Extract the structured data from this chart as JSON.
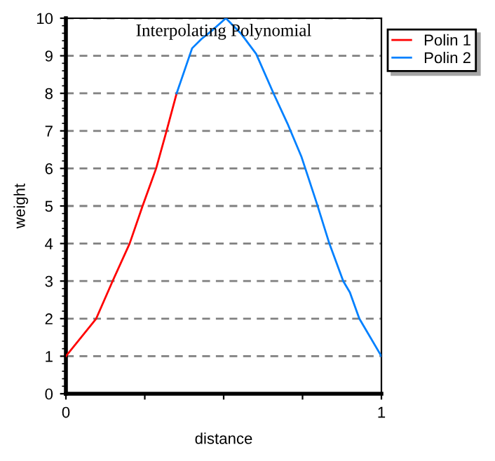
{
  "chart_data": {
    "type": "line",
    "title": "Interpolating Polynomial",
    "xlabel": "distance",
    "ylabel": "weight",
    "xlim": [
      0,
      1
    ],
    "ylim": [
      0,
      10
    ],
    "xticks": [
      0,
      {
        "value": 0.25,
        "label": null
      },
      {
        "value": 0.5,
        "label": null
      },
      {
        "value": 0.75,
        "label": null
      },
      1
    ],
    "yticks": [
      0,
      1,
      2,
      3,
      4,
      5,
      6,
      7,
      8,
      9,
      10
    ],
    "grid": "y",
    "legend": "top right",
    "marker": "none",
    "line_style": "solid",
    "series": [
      {
        "name": "Polin 1",
        "color": "#ff0000",
        "x": [
          0,
          0.096,
          0.148,
          0.202,
          0.243,
          0.286,
          0.319,
          0.351
        ],
        "values": [
          1,
          2,
          3,
          4,
          5,
          6,
          7,
          8
        ]
      },
      {
        "name": "Polin 2",
        "color": "#0080ff",
        "x": [
          0.351,
          0.4,
          0.43,
          0.467,
          0.507,
          0.554,
          0.603,
          0.658,
          0.702,
          0.747,
          0.796,
          0.835,
          0.879,
          0.9,
          0.93,
          1
        ],
        "values": [
          8,
          9.2,
          9.45,
          9.7,
          10,
          9.6,
          9.05,
          8,
          7.2,
          6.3,
          5.05,
          4,
          3,
          2.7,
          2,
          1
        ]
      }
    ]
  }
}
